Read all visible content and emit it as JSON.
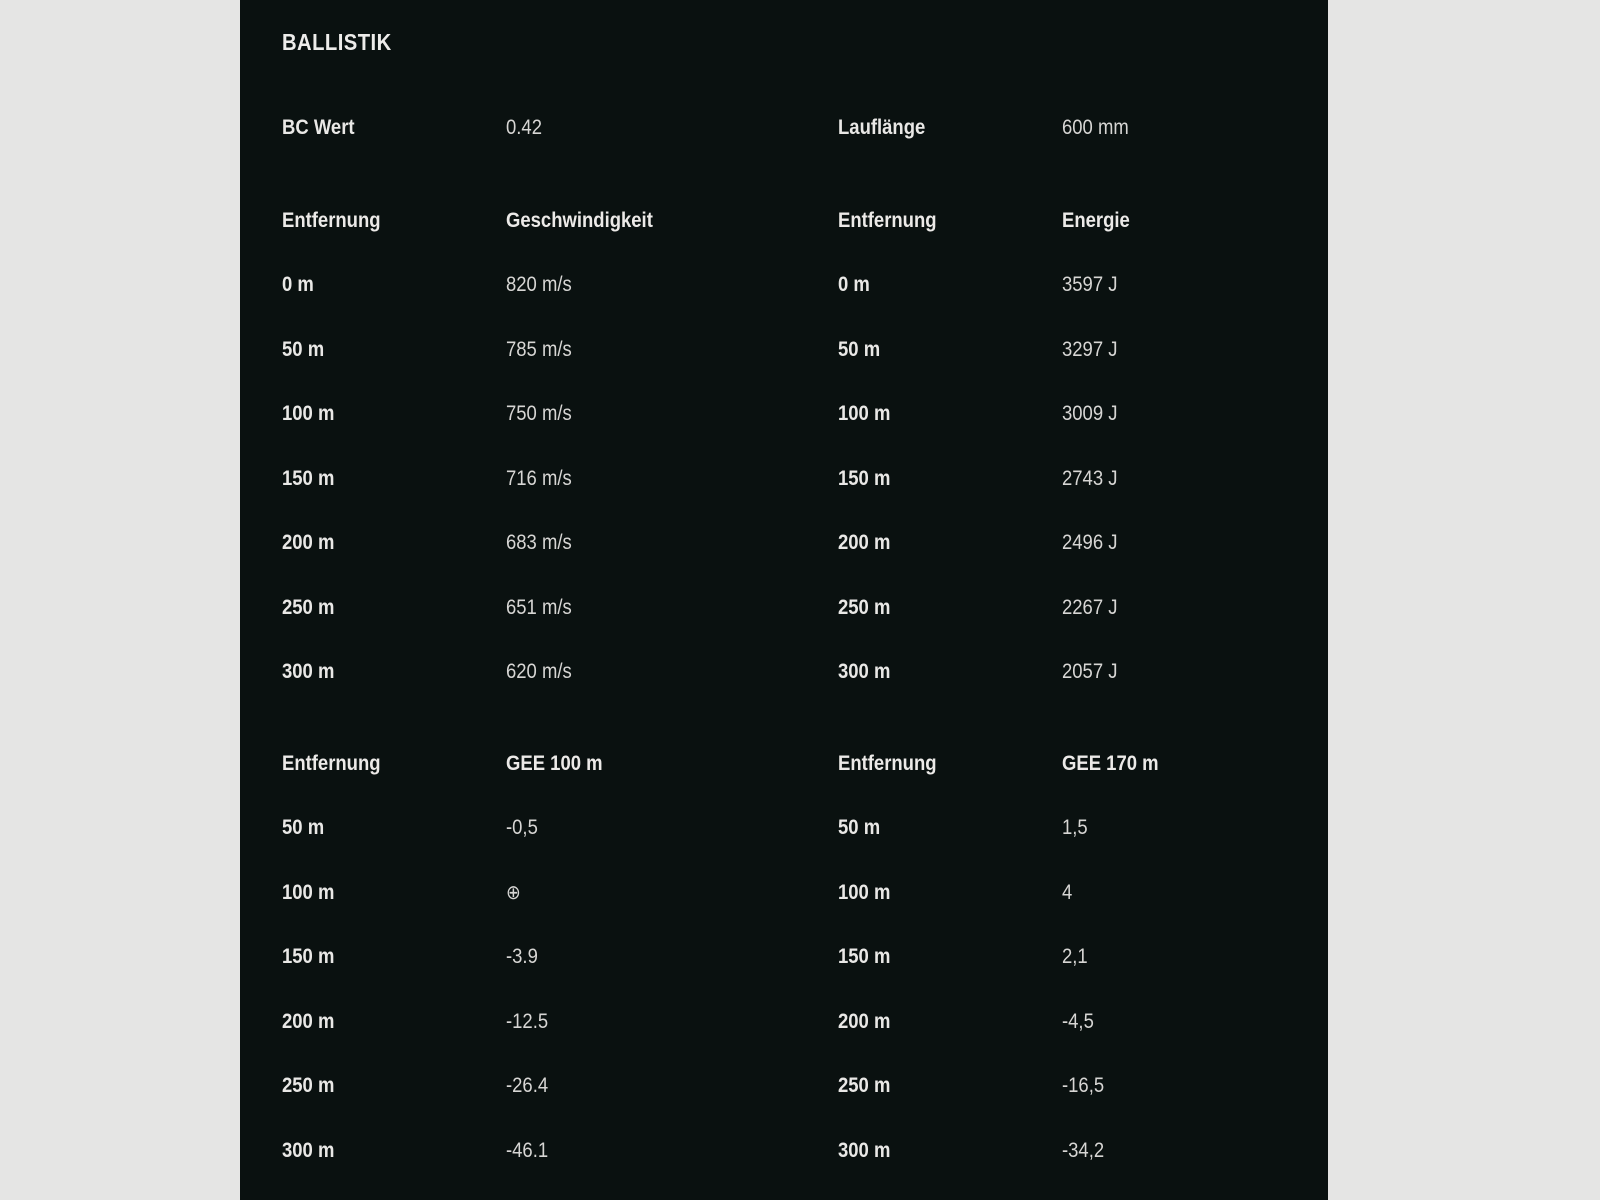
{
  "colors": {
    "page_bg": "#e5e5e4",
    "panel_bg": "#0a1110",
    "label_text": "#e9e8e6",
    "value_text": "#d7d6d4"
  },
  "panel": {
    "title": "BALLISTIK"
  },
  "info": {
    "left": {
      "label": "BC Wert",
      "value": "0.42"
    },
    "right": {
      "label": "Lauflänge",
      "value": "600 mm"
    }
  },
  "section1": {
    "left": {
      "header": {
        "label": "Entfernung",
        "value": "Geschwindigkeit"
      },
      "rows": [
        {
          "label": "0 m",
          "value": "820 m/s"
        },
        {
          "label": "50 m",
          "value": "785 m/s"
        },
        {
          "label": "100 m",
          "value": "750 m/s"
        },
        {
          "label": "150 m",
          "value": "716 m/s"
        },
        {
          "label": "200 m",
          "value": "683 m/s"
        },
        {
          "label": "250 m",
          "value": "651 m/s"
        },
        {
          "label": "300 m",
          "value": "620 m/s"
        }
      ]
    },
    "right": {
      "header": {
        "label": "Entfernung",
        "value": "Energie"
      },
      "rows": [
        {
          "label": "0 m",
          "value": "3597 J"
        },
        {
          "label": "50 m",
          "value": "3297 J"
        },
        {
          "label": "100 m",
          "value": "3009 J"
        },
        {
          "label": "150 m",
          "value": "2743 J"
        },
        {
          "label": "200 m",
          "value": "2496 J"
        },
        {
          "label": "250 m",
          "value": "2267 J"
        },
        {
          "label": "300 m",
          "value": "2057 J"
        }
      ]
    }
  },
  "section2": {
    "left": {
      "header": {
        "label": "Entfernung",
        "value": "GEE 100 m"
      },
      "rows": [
        {
          "label": "50 m",
          "value": "-0,5"
        },
        {
          "label": "100 m",
          "value": "⊕"
        },
        {
          "label": "150 m",
          "value": "-3.9"
        },
        {
          "label": "200 m",
          "value": "-12.5"
        },
        {
          "label": "250 m",
          "value": "-26.4"
        },
        {
          "label": "300 m",
          "value": "-46.1"
        }
      ]
    },
    "right": {
      "header": {
        "label": "Entfernung",
        "value": "GEE 170 m"
      },
      "rows": [
        {
          "label": "50 m",
          "value": "1,5"
        },
        {
          "label": "100 m",
          "value": "4"
        },
        {
          "label": "150 m",
          "value": "2,1"
        },
        {
          "label": "200 m",
          "value": "-4,5"
        },
        {
          "label": "250 m",
          "value": "-16,5"
        },
        {
          "label": "300 m",
          "value": "-34,2"
        }
      ]
    }
  }
}
